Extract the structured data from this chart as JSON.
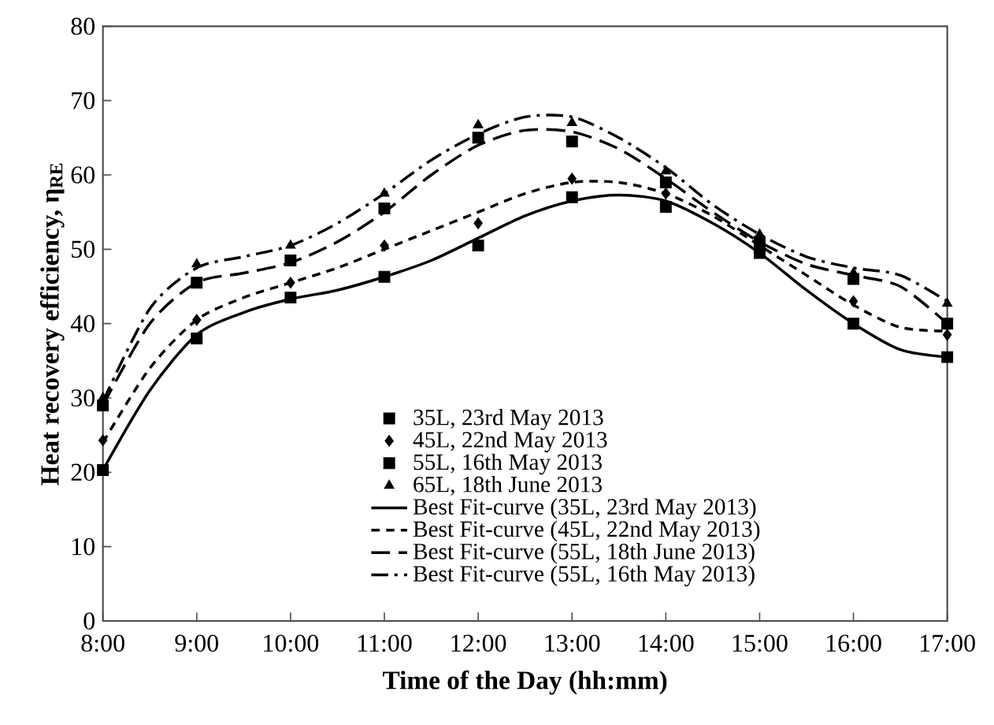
{
  "chart_data": {
    "type": "scatter",
    "xlabel": "Time of the Day (hh:mm)",
    "ylabel": "Heat recovery efficiency, η$_{RE}$",
    "xlim": [
      8,
      17
    ],
    "ylim": [
      0,
      80
    ],
    "xticks": [
      {
        "value": 8,
        "label": "8:00"
      },
      {
        "value": 9,
        "label": "9:00"
      },
      {
        "value": 10,
        "label": "10:00"
      },
      {
        "value": 11,
        "label": "11:00"
      },
      {
        "value": 12,
        "label": "12:00"
      },
      {
        "value": 13,
        "label": "13:00"
      },
      {
        "value": 14,
        "label": "14:00"
      },
      {
        "value": 15,
        "label": "15:00"
      },
      {
        "value": 16,
        "label": "16:00"
      },
      {
        "value": 17,
        "label": "17:00"
      }
    ],
    "yticks": [
      0,
      10,
      20,
      30,
      40,
      50,
      60,
      70,
      80
    ],
    "legend": "bottom",
    "x": [
      8,
      9,
      10,
      11,
      12,
      13,
      14,
      15,
      16,
      17
    ],
    "series": [
      {
        "name": "35L, 23rd May 2013",
        "marker": "square",
        "color": "#000000",
        "values": [
          20.3,
          38,
          43.5,
          46.3,
          50.5,
          57,
          55.7,
          49.5,
          40,
          35.5
        ]
      },
      {
        "name": "45L, 22nd May 2013",
        "marker": "diamond",
        "color": "#000000",
        "values": [
          24.3,
          40.5,
          45.5,
          50.5,
          53.5,
          59.5,
          57.5,
          null,
          43,
          38.5
        ]
      },
      {
        "name": "55L, 16th May 2013",
        "marker": "square",
        "color": "#000000",
        "values": [
          29,
          45.5,
          48.5,
          55.5,
          65,
          64.5,
          59,
          51,
          46,
          40
        ]
      },
      {
        "name": "65L, 18th June 2013",
        "marker": "triangle",
        "color": "#000000",
        "values": [
          30,
          48,
          50.5,
          57.5,
          66.7,
          67,
          60.5,
          52,
          46.8,
          42.7
        ]
      },
      {
        "name": "Best Fit-curve (35L, 23rd May 2013)",
        "type": "line",
        "line_style": "solid",
        "color": "#000000",
        "x": [
          8,
          8.5,
          9,
          9.5,
          10,
          10.5,
          11,
          11.5,
          12,
          12.5,
          13,
          13.5,
          14,
          14.5,
          15,
          15.5,
          16,
          16.5,
          17
        ],
        "values": [
          20.3,
          31,
          38.5,
          41.5,
          43.3,
          44.5,
          46.3,
          48.5,
          51.5,
          54.5,
          56.5,
          57.3,
          56.5,
          53.5,
          49.5,
          44.5,
          40,
          36.5,
          35.5
        ]
      },
      {
        "name": "Best Fit-curve (45L, 22nd May 2013)",
        "type": "line",
        "line_style": "dashed",
        "color": "#000000",
        "x": [
          8,
          8.5,
          9,
          9.5,
          10,
          10.5,
          11,
          11.5,
          12,
          12.5,
          13,
          13.5,
          14,
          14.5,
          15,
          15.5,
          16,
          16.5,
          17
        ],
        "values": [
          24,
          34,
          40.5,
          43.5,
          45.5,
          47.5,
          50,
          52.5,
          55,
          57.5,
          59,
          59,
          57.5,
          54.5,
          50.5,
          46.5,
          42.5,
          39.5,
          39
        ]
      },
      {
        "name": "Best Fit-curve (55L, 18th June 2013)",
        "type": "line",
        "line_style": "longdashed",
        "color": "#000000",
        "x": [
          8,
          8.5,
          9,
          9.5,
          10,
          10.5,
          11,
          11.5,
          12,
          12.5,
          13,
          13.5,
          14,
          14.5,
          15,
          15.5,
          16,
          16.5,
          17
        ],
        "values": [
          29,
          40,
          45.5,
          46.8,
          48.2,
          51,
          55,
          60,
          64,
          66,
          65.8,
          63.5,
          59.5,
          55,
          51,
          48,
          46.5,
          45,
          40
        ]
      },
      {
        "name": "Best Fit-curve (55L, 16th May 2013)",
        "type": "line",
        "line_style": "dashdot",
        "color": "#000000",
        "x": [
          8,
          8.5,
          9,
          9.5,
          10,
          10.5,
          11,
          11.5,
          12,
          12.5,
          13,
          13.5,
          14,
          14.5,
          15,
          15.5,
          16,
          16.5,
          17
        ],
        "values": [
          29.5,
          42,
          47.5,
          49,
          50.5,
          53.5,
          57.5,
          62,
          65.5,
          67.8,
          67.8,
          65,
          61,
          56,
          52,
          49,
          47.5,
          46.5,
          43
        ]
      }
    ]
  }
}
